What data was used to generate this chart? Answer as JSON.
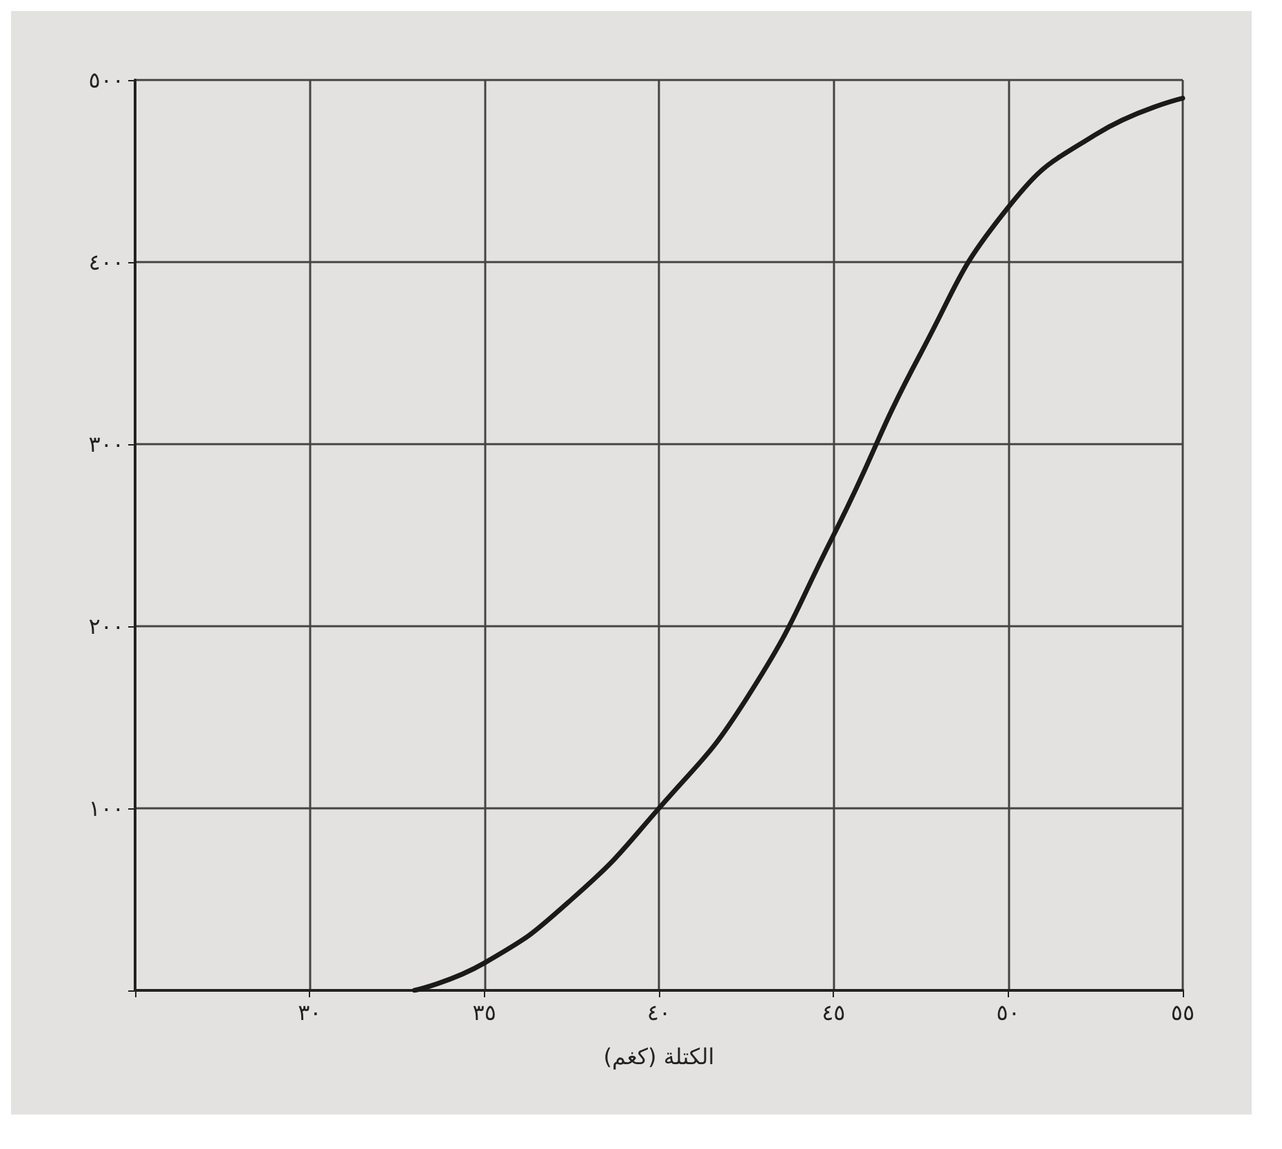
{
  "chart_data": {
    "type": "line",
    "xlabel": "الكتلة (كغم)",
    "x": [
      33,
      35,
      37.5,
      40,
      42.5,
      45,
      47.5,
      50,
      52.5,
      55
    ],
    "series": [
      {
        "color": "#1a1a1a",
        "values": [
          0,
          15,
          50,
          100,
          160,
          250,
          350,
          430,
          470,
          490
        ]
      }
    ],
    "xlim": [
      25,
      55
    ],
    "xticks": [
      {
        "value": 25,
        "label": null
      },
      {
        "value": 30,
        "label": "٣٠"
      },
      {
        "value": 35,
        "label": "٣٥"
      },
      {
        "value": 40,
        "label": "٤٠"
      },
      {
        "value": 45,
        "label": "٤٥"
      },
      {
        "value": 50,
        "label": "٥٠"
      },
      {
        "value": 55,
        "label": "٥٥"
      }
    ],
    "ylim": [
      0,
      500
    ],
    "yticks": [
      {
        "value": 0,
        "label": null
      },
      {
        "value": 100,
        "label": "١٠٠"
      },
      {
        "value": 200,
        "label": "٢٠٠"
      },
      {
        "value": 300,
        "label": "٣٠٠"
      },
      {
        "value": 400,
        "label": "٤٠٠"
      },
      {
        "value": 500,
        "label": "٥٠٠"
      }
    ],
    "grid": true,
    "marker": "none",
    "line_style": "solid"
  }
}
